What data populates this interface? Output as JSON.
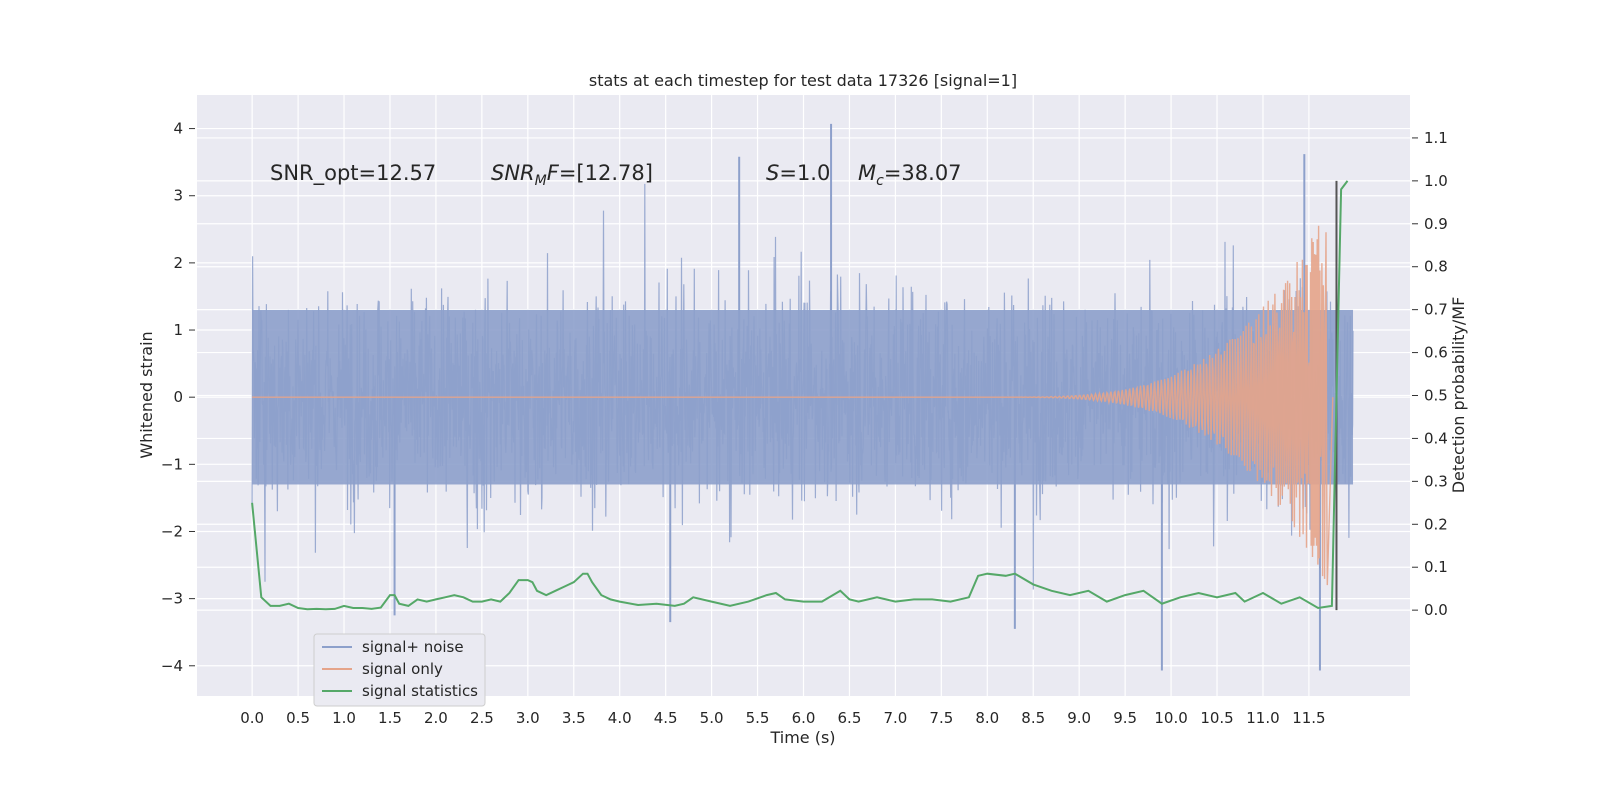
{
  "chart_data": {
    "type": "line",
    "title": "stats at each timestep for test data 17326 [signal=1]",
    "xlabel": "Time (s)",
    "ylabel": "Whitened strain",
    "y2label": "Detection probability/MF",
    "xlim": [
      -0.6,
      12.6
    ],
    "ylim": [
      -4.45,
      4.5
    ],
    "y2lim": [
      -0.2,
      1.2
    ],
    "xticks": [
      "0.0",
      "0.5",
      "1.0",
      "1.5",
      "2.0",
      "2.5",
      "3.0",
      "3.5",
      "4.0",
      "4.5",
      "5.0",
      "5.5",
      "6.0",
      "6.5",
      "7.0",
      "7.5",
      "8.0",
      "8.5",
      "9.0",
      "9.5",
      "10.0",
      "10.5",
      "11.0",
      "11.5"
    ],
    "yticks": [
      "4",
      "3",
      "2",
      "1",
      "0",
      "−1",
      "−2",
      "−3",
      "−4"
    ],
    "y2ticks": [
      "1.1",
      "1.0",
      "0.9",
      "0.8",
      "0.7",
      "0.6",
      "0.5",
      "0.4",
      "0.3",
      "0.2",
      "0.1",
      "0.0"
    ],
    "grid": true,
    "legend_position": "lower-left",
    "annotations": {
      "snr_opt": "SNR_opt=12.57",
      "snr_mf": "=[12.78]",
      "snr_mf_sym": "SNR",
      "snr_mf_sub": "M",
      "snr_mf_sym2": "F",
      "s_sym": "S",
      "s_val": "=1.0",
      "mc_sym": "M",
      "mc_sub": "c",
      "mc_val": "=38.07"
    },
    "series": [
      {
        "name": "signal+ noise",
        "color": "#8da0cb",
        "description_values": {
          "band_low": -1.3,
          "band_high": 1.3,
          "peak_max": 4.07,
          "peak_min": -4.07,
          "t_end": 11.98
        }
      },
      {
        "name": "signal only",
        "color": "#e5a48a",
        "chirp": {
          "t_start": 8.0,
          "t_merger": 11.7,
          "amp_start": 0.0,
          "amp_peak": 2.8
        }
      },
      {
        "name": "signal statistics",
        "color": "#55a868",
        "axis": "right",
        "x": [
          0.0,
          0.1,
          0.2,
          0.3,
          0.4,
          0.5,
          0.6,
          0.7,
          0.8,
          0.9,
          1.0,
          1.1,
          1.2,
          1.3,
          1.4,
          1.5,
          1.55,
          1.6,
          1.7,
          1.8,
          1.9,
          2.0,
          2.1,
          2.2,
          2.3,
          2.4,
          2.5,
          2.6,
          2.7,
          2.8,
          2.9,
          3.0,
          3.05,
          3.1,
          3.2,
          3.3,
          3.4,
          3.5,
          3.6,
          3.65,
          3.7,
          3.8,
          3.9,
          4.0,
          4.2,
          4.4,
          4.6,
          4.7,
          4.8,
          5.0,
          5.2,
          5.4,
          5.6,
          5.7,
          5.8,
          6.0,
          6.2,
          6.4,
          6.5,
          6.6,
          6.8,
          7.0,
          7.2,
          7.4,
          7.6,
          7.8,
          7.9,
          8.0,
          8.2,
          8.3,
          8.5,
          8.7,
          8.9,
          9.1,
          9.3,
          9.5,
          9.7,
          9.9,
          10.1,
          10.3,
          10.5,
          10.7,
          10.8,
          11.0,
          11.2,
          11.4,
          11.6,
          11.75,
          11.8,
          11.85,
          11.92
        ],
        "values": [
          0.25,
          0.03,
          0.01,
          0.01,
          0.015,
          0.005,
          0.002,
          0.003,
          0.002,
          0.003,
          0.01,
          0.005,
          0.005,
          0.003,
          0.006,
          0.035,
          0.035,
          0.015,
          0.01,
          0.025,
          0.02,
          0.025,
          0.03,
          0.035,
          0.03,
          0.02,
          0.02,
          0.025,
          0.02,
          0.04,
          0.07,
          0.07,
          0.065,
          0.045,
          0.035,
          0.045,
          0.055,
          0.065,
          0.085,
          0.085,
          0.065,
          0.035,
          0.025,
          0.02,
          0.012,
          0.015,
          0.01,
          0.015,
          0.03,
          0.02,
          0.01,
          0.02,
          0.035,
          0.04,
          0.025,
          0.02,
          0.02,
          0.045,
          0.025,
          0.02,
          0.03,
          0.02,
          0.025,
          0.025,
          0.02,
          0.03,
          0.08,
          0.085,
          0.08,
          0.085,
          0.06,
          0.045,
          0.035,
          0.045,
          0.02,
          0.035,
          0.045,
          0.015,
          0.03,
          0.04,
          0.03,
          0.04,
          0.02,
          0.04,
          0.015,
          0.03,
          0.005,
          0.01,
          0.5,
          0.98,
          1.0
        ]
      }
    ],
    "vertical_line": {
      "x": 11.8,
      "y_top": 1.0,
      "y_bottom": 0.0,
      "color": "#555555"
    }
  }
}
